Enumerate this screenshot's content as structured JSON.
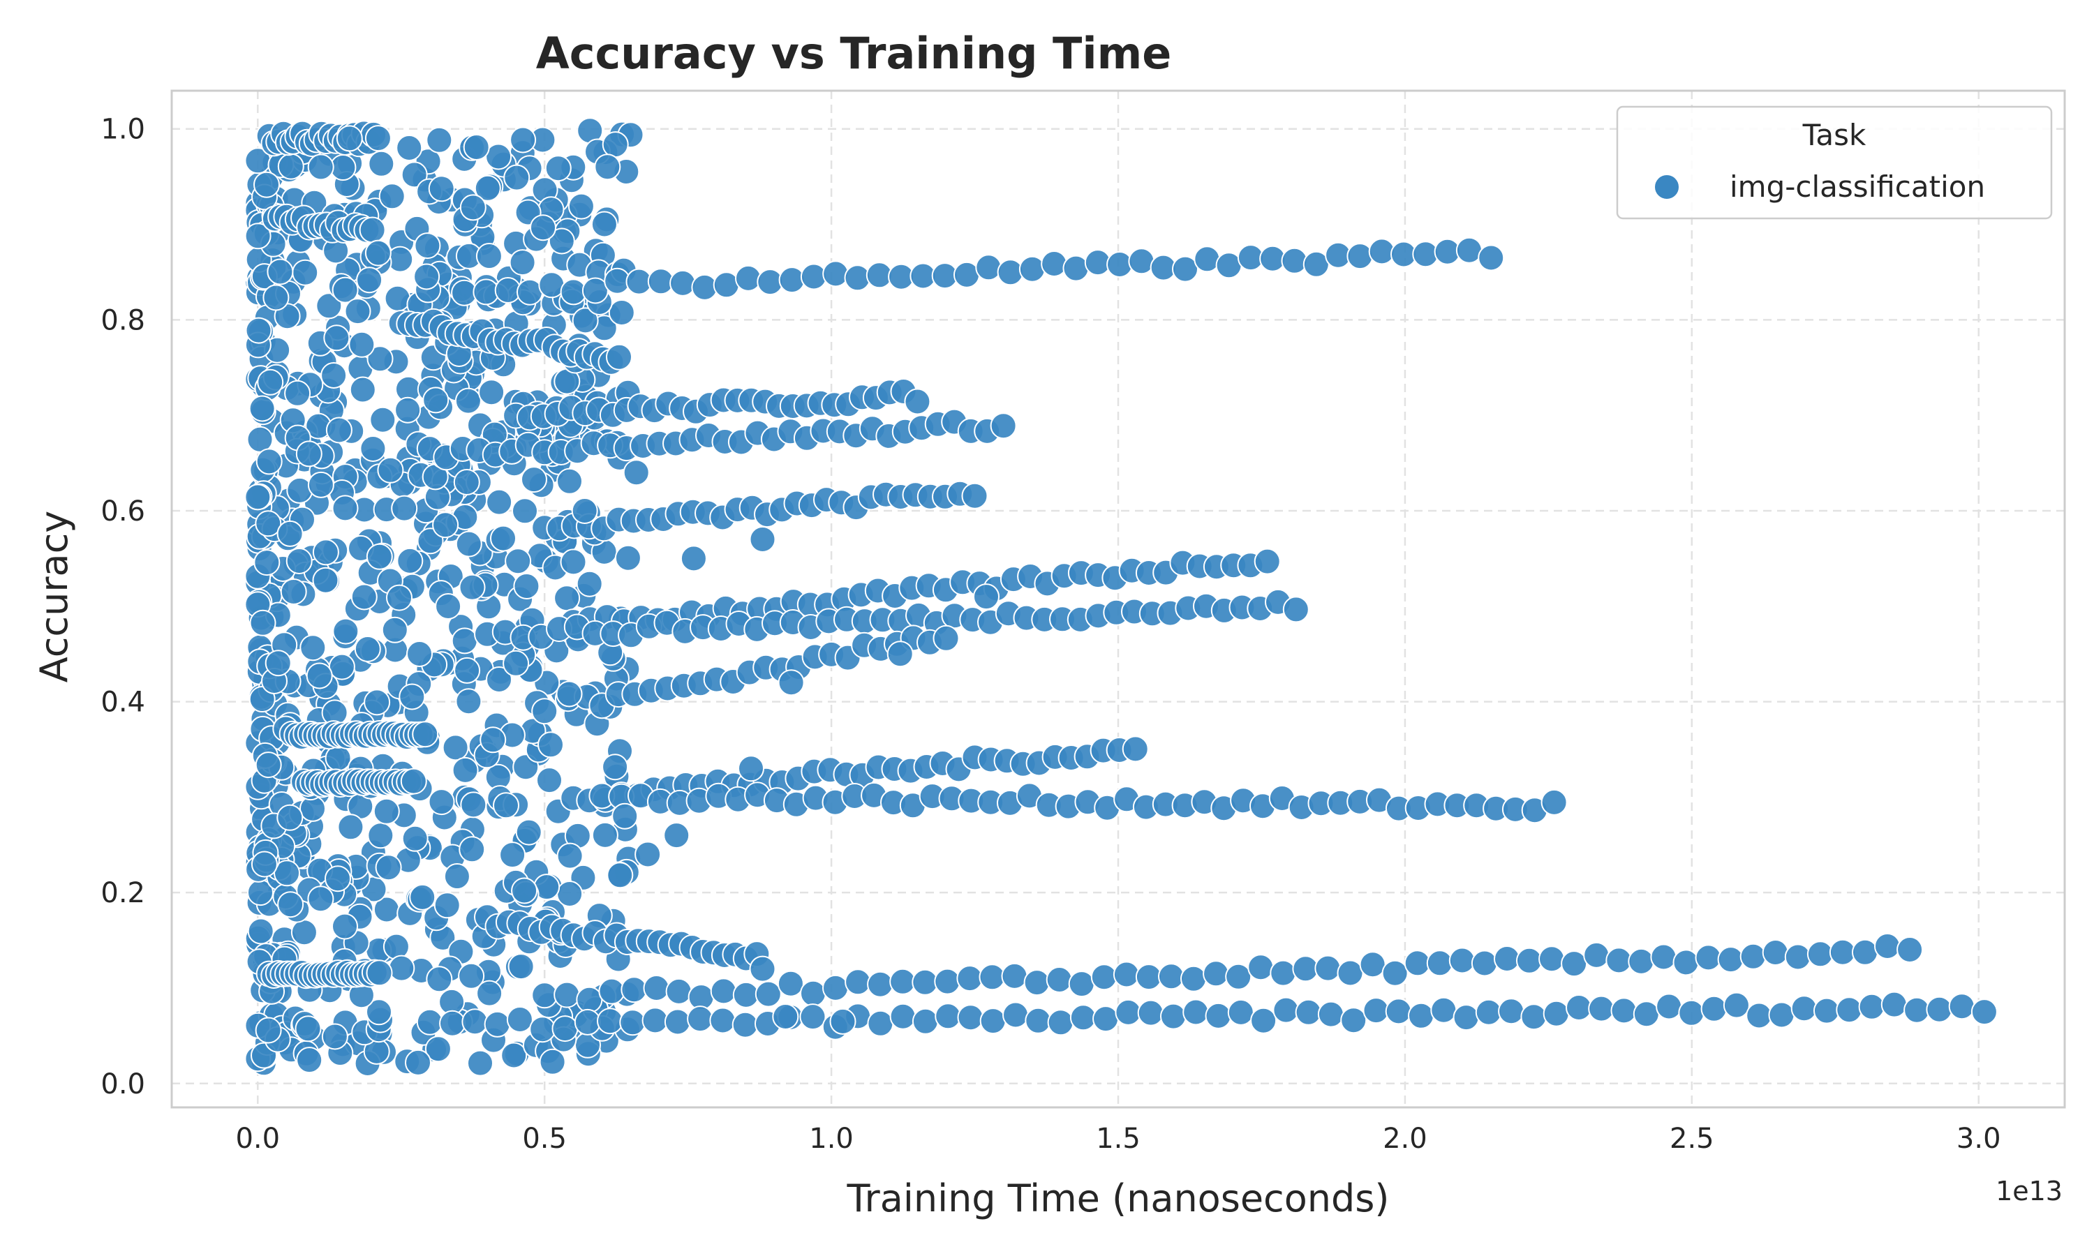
{
  "chart_data": {
    "type": "scatter",
    "title": "Accuracy vs Training Time",
    "xlabel": "Training Time (nanoseconds)",
    "ylabel": "Accuracy",
    "x_offset_label": "1e13",
    "xlim": [
      -0.15,
      3.15
    ],
    "ylim": [
      -0.025,
      1.04
    ],
    "x_ticks": [
      0.0,
      0.5,
      1.0,
      1.5,
      2.0,
      2.5,
      3.0
    ],
    "x_tick_labels": [
      "0.0",
      "0.5",
      "1.0",
      "1.5",
      "2.0",
      "2.5",
      "3.0"
    ],
    "y_ticks": [
      0.0,
      0.2,
      0.4,
      0.6,
      0.8,
      1.0
    ],
    "y_tick_labels": [
      "0.0",
      "0.2",
      "0.4",
      "0.6",
      "0.8",
      "1.0"
    ],
    "grid": true,
    "legend_position": "top-right",
    "legend_title": "Task",
    "point_color": "#3a87c2",
    "series": [
      {
        "name": "img-classification",
        "trajectories": [
          {
            "start": [
              0.02,
              0.99
            ],
            "end": [
              0.21,
              0.99
            ],
            "count": 24
          },
          {
            "start": [
              0.03,
              0.91
            ],
            "end": [
              0.2,
              0.89
            ],
            "count": 18
          },
          {
            "start": [
              0.36,
              0.83
            ],
            "end": [
              2.15,
              0.87
            ],
            "count": 48
          },
          {
            "start": [
              0.25,
              0.8
            ],
            "end": [
              0.63,
              0.76
            ],
            "count": 28
          },
          {
            "start": [
              0.45,
              0.7
            ],
            "end": [
              1.15,
              0.72
            ],
            "count": 30
          },
          {
            "start": [
              0.3,
              0.66
            ],
            "end": [
              1.3,
              0.69
            ],
            "count": 36
          },
          {
            "start": [
              0.5,
              0.58
            ],
            "end": [
              1.25,
              0.62
            ],
            "count": 30
          },
          {
            "start": [
              0.55,
              0.48
            ],
            "end": [
              1.76,
              0.55
            ],
            "count": 42
          },
          {
            "start": [
              0.4,
              0.47
            ],
            "end": [
              1.81,
              0.5
            ],
            "count": 46
          },
          {
            "start": [
              0.6,
              0.4
            ],
            "end": [
              1.2,
              0.47
            ],
            "count": 22
          },
          {
            "start": [
              0.55,
              0.3
            ],
            "end": [
              1.53,
              0.35
            ],
            "count": 36
          },
          {
            "start": [
              0.6,
              0.3
            ],
            "end": [
              2.26,
              0.29
            ],
            "count": 50
          },
          {
            "start": [
              0.4,
              0.17
            ],
            "end": [
              0.87,
              0.13
            ],
            "count": 26
          },
          {
            "start": [
              0.5,
              0.09
            ],
            "end": [
              2.88,
              0.14
            ],
            "count": 62
          },
          {
            "start": [
              0.3,
              0.06
            ],
            "end": [
              3.01,
              0.08
            ],
            "count": 70
          }
        ],
        "dense_region": {
          "x": [
            0.0,
            0.65
          ],
          "y": [
            0.02,
            1.0
          ],
          "count": 900
        },
        "bands": [
          {
            "x": [
              0.02,
              0.22
            ],
            "y": 0.115
          },
          {
            "x": [
              0.06,
              0.3
            ],
            "y": 0.365
          },
          {
            "x": [
              0.08,
              0.28
            ],
            "y": 0.315
          }
        ],
        "scattered_points": [
          [
            0.73,
            0.26
          ],
          [
            0.68,
            0.24
          ],
          [
            0.88,
            0.12
          ],
          [
            0.92,
            0.07
          ],
          [
            1.02,
            0.065
          ],
          [
            0.93,
            0.42
          ],
          [
            0.66,
            0.64
          ],
          [
            0.57,
            0.6
          ],
          [
            0.45,
            0.44
          ],
          [
            0.64,
            0.28
          ],
          [
            0.86,
            0.33
          ],
          [
            1.27,
            0.51
          ],
          [
            1.12,
            0.45
          ],
          [
            0.88,
            0.57
          ],
          [
            0.76,
            0.55
          ],
          [
            0.16,
            0.99
          ],
          [
            0.11,
            0.96
          ],
          [
            0.21,
            0.87
          ],
          [
            0.41,
            0.36
          ],
          [
            0.5,
            0.39
          ]
        ]
      }
    ]
  }
}
